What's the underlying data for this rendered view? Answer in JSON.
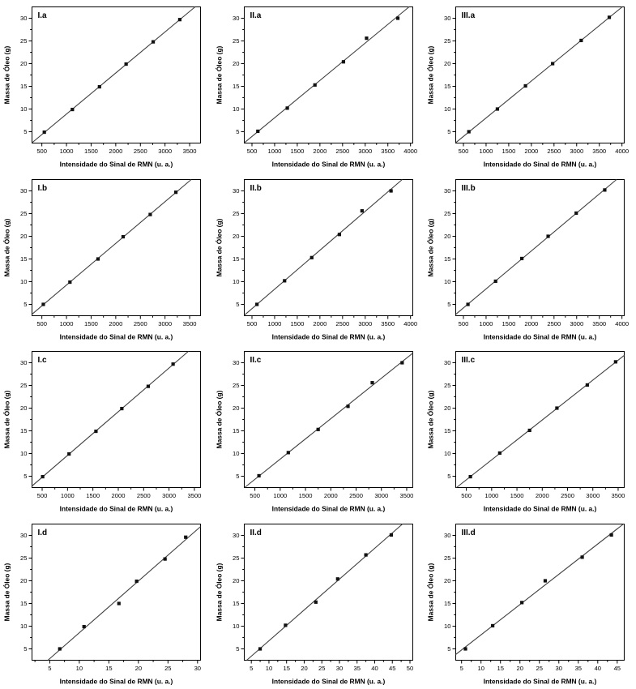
{
  "figure": {
    "xlabel": "Intensidade do Sinal de RMN (u. a.)",
    "ylabel": "Massa de Óleo (g)",
    "background": "#ffffff",
    "frame_color": "#000000",
    "marker_color": "#111111",
    "line_color": "#3f3f3f",
    "marker_shape": "filled-square",
    "fit": "linear"
  },
  "chart_data": [
    {
      "type": "scatter",
      "id": "I.a",
      "x": [
        550,
        1120,
        1670,
        2210,
        2760,
        3300
      ],
      "y": [
        4.9,
        9.9,
        14.9,
        19.9,
        24.8,
        29.7
      ],
      "xticks": [
        500,
        1000,
        1500,
        2000,
        2500,
        3000,
        3500
      ],
      "yticks": [
        5,
        10,
        15,
        20,
        25,
        30
      ],
      "xlim": [
        300,
        3720
      ],
      "ylim": [
        2.5,
        32.5
      ]
    },
    {
      "type": "scatter",
      "id": "II.a",
      "x": [
        630,
        1280,
        1890,
        2520,
        3030,
        3720
      ],
      "y": [
        5.1,
        10.2,
        15.3,
        20.4,
        25.6,
        30.0
      ],
      "xticks": [
        500,
        1000,
        1500,
        2000,
        2500,
        3000,
        3500,
        4000
      ],
      "yticks": [
        5,
        10,
        15,
        20,
        25,
        30
      ],
      "xlim": [
        330,
        4050
      ],
      "ylim": [
        2.5,
        32.5
      ]
    },
    {
      "type": "scatter",
      "id": "III.a",
      "x": [
        620,
        1250,
        1870,
        2470,
        3100,
        3720
      ],
      "y": [
        5.0,
        10.0,
        15.1,
        20.0,
        25.1,
        30.2
      ],
      "xticks": [
        500,
        1000,
        1500,
        2000,
        2500,
        3000,
        3500,
        4000
      ],
      "yticks": [
        5,
        10,
        15,
        20,
        25,
        30
      ],
      "xlim": [
        330,
        4050
      ],
      "ylim": [
        2.5,
        32.5
      ]
    },
    {
      "type": "scatter",
      "id": "I.b",
      "x": [
        530,
        1070,
        1640,
        2150,
        2700,
        3220
      ],
      "y": [
        5.0,
        9.9,
        15.0,
        19.9,
        24.8,
        29.7
      ],
      "xticks": [
        500,
        1000,
        1500,
        2000,
        2500,
        3000,
        3500
      ],
      "yticks": [
        5,
        10,
        15,
        20,
        25,
        30
      ],
      "xlim": [
        300,
        3720
      ],
      "ylim": [
        2.5,
        32.5
      ]
    },
    {
      "type": "scatter",
      "id": "II.b",
      "x": [
        610,
        1220,
        1820,
        2430,
        2930,
        3570
      ],
      "y": [
        5.0,
        10.2,
        15.3,
        20.4,
        25.6,
        30.0
      ],
      "xticks": [
        500,
        1000,
        1500,
        2000,
        2500,
        3000,
        3500,
        4000
      ],
      "yticks": [
        5,
        10,
        15,
        20,
        25,
        30
      ],
      "xlim": [
        330,
        4050
      ],
      "ylim": [
        2.5,
        32.5
      ]
    },
    {
      "type": "scatter",
      "id": "III.b",
      "x": [
        600,
        1210,
        1790,
        2370,
        2990,
        3620
      ],
      "y": [
        5.0,
        10.1,
        15.1,
        20.0,
        25.1,
        30.2
      ],
      "xticks": [
        500,
        1000,
        1500,
        2000,
        2500,
        3000,
        3500,
        4000
      ],
      "yticks": [
        5,
        10,
        15,
        20,
        25,
        30
      ],
      "xlim": [
        330,
        4050
      ],
      "ylim": [
        2.5,
        32.5
      ]
    },
    {
      "type": "scatter",
      "id": "I.c",
      "x": [
        510,
        1030,
        1560,
        2070,
        2590,
        3080
      ],
      "y": [
        4.9,
        9.9,
        14.9,
        19.9,
        24.8,
        29.7
      ],
      "xticks": [
        500,
        1000,
        1500,
        2000,
        2500,
        3000,
        3500
      ],
      "yticks": [
        5,
        10,
        15,
        20,
        25,
        30
      ],
      "xlim": [
        300,
        3620
      ],
      "ylim": [
        2.5,
        32.5
      ]
    },
    {
      "type": "scatter",
      "id": "II.c",
      "x": [
        580,
        1160,
        1750,
        2340,
        2820,
        3410
      ],
      "y": [
        5.1,
        10.2,
        15.3,
        20.4,
        25.6,
        30.0
      ],
      "xticks": [
        500,
        1000,
        1500,
        2000,
        2500,
        3000,
        3500
      ],
      "yticks": [
        5,
        10,
        15,
        20,
        25,
        30
      ],
      "xlim": [
        290,
        3620
      ],
      "ylim": [
        2.5,
        32.5
      ]
    },
    {
      "type": "scatter",
      "id": "III.c",
      "x": [
        580,
        1160,
        1750,
        2290,
        2890,
        3450
      ],
      "y": [
        4.9,
        10.1,
        15.1,
        20.0,
        25.1,
        30.2
      ],
      "xticks": [
        500,
        1000,
        1500,
        2000,
        2500,
        3000,
        3500
      ],
      "yticks": [
        5,
        10,
        15,
        20,
        25,
        30
      ],
      "xlim": [
        290,
        3620
      ],
      "ylim": [
        2.5,
        32.5
      ]
    },
    {
      "type": "scatter",
      "id": "I.d",
      "x": [
        6.7,
        10.8,
        16.7,
        19.7,
        24.5,
        28.0
      ],
      "y": [
        5.0,
        9.9,
        15.0,
        19.9,
        24.8,
        29.6
      ],
      "xticks": [
        5,
        10,
        15,
        20,
        25,
        30
      ],
      "yticks": [
        5,
        10,
        15,
        20,
        25,
        30
      ],
      "xlim": [
        2,
        30.5
      ],
      "ylim": [
        2.5,
        32.5
      ]
    },
    {
      "type": "scatter",
      "id": "II.d",
      "x": [
        7.5,
        14.7,
        23.3,
        29.5,
        37.5,
        44.7
      ],
      "y": [
        5.0,
        10.2,
        15.3,
        20.4,
        25.7,
        30.1
      ],
      "xticks": [
        5,
        10,
        15,
        20,
        25,
        30,
        35,
        40,
        45,
        50
      ],
      "yticks": [
        5,
        10,
        15,
        20,
        25,
        30
      ],
      "xlim": [
        3,
        50.8
      ],
      "ylim": [
        2.5,
        32.5
      ]
    },
    {
      "type": "scatter",
      "id": "III.d",
      "x": [
        6.0,
        13.0,
        20.5,
        26.5,
        36.0,
        43.5
      ],
      "y": [
        5.0,
        10.1,
        15.2,
        20.0,
        25.2,
        30.1
      ],
      "xticks": [
        5,
        10,
        15,
        20,
        25,
        30,
        35,
        40,
        45
      ],
      "yticks": [
        5,
        10,
        15,
        20,
        25,
        30
      ],
      "xlim": [
        3.5,
        46.8
      ],
      "ylim": [
        2.5,
        32.5
      ]
    }
  ]
}
